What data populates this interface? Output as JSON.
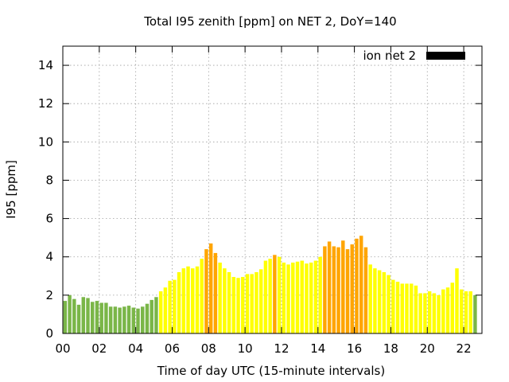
{
  "chart_data": {
    "type": "bar",
    "title": "Total I95 zenith [ppm] on NET 2, DoY=140",
    "xlabel": "Time of day UTC (15-minute intervals)",
    "ylabel": "I95 [ppm]",
    "ylim": [
      0,
      15
    ],
    "xlim": [
      0,
      23
    ],
    "grid": true,
    "legend_position": "top-right",
    "x_ticks": [
      "00",
      "02",
      "04",
      "06",
      "08",
      "10",
      "12",
      "14",
      "16",
      "18",
      "20",
      "22"
    ],
    "y_ticks": [
      "0",
      "2",
      "4",
      "6",
      "8",
      "10",
      "12",
      "14"
    ],
    "colors": {
      "green": "#7ab648",
      "yellow": "#ffff00",
      "orange": "#ffa500",
      "legend": "#000000"
    },
    "series": [
      {
        "name": "ion net 2",
        "color": "#000000",
        "interval_hours": 0.25,
        "values": [
          1.7,
          2.0,
          1.8,
          1.5,
          1.9,
          1.85,
          1.65,
          1.7,
          1.6,
          1.6,
          1.4,
          1.4,
          1.35,
          1.4,
          1.45,
          1.35,
          1.3,
          1.4,
          1.55,
          1.75,
          1.9,
          2.2,
          2.4,
          2.75,
          2.8,
          3.2,
          3.4,
          3.5,
          3.4,
          3.5,
          3.9,
          4.4,
          4.7,
          4.2,
          3.7,
          3.4,
          3.2,
          2.95,
          2.9,
          2.95,
          3.1,
          3.1,
          3.2,
          3.35,
          3.8,
          3.9,
          4.1,
          4.0,
          3.7,
          3.6,
          3.7,
          3.75,
          3.8,
          3.65,
          3.7,
          3.8,
          4.0,
          4.55,
          4.8,
          4.55,
          4.5,
          4.85,
          4.4,
          4.65,
          4.95,
          5.1,
          4.5,
          3.6,
          3.4,
          3.3,
          3.2,
          3.05,
          2.8,
          2.7,
          2.6,
          2.6,
          2.6,
          2.5,
          2.1,
          2.1,
          2.2,
          2.1,
          2.0,
          2.3,
          2.4,
          2.65,
          3.4,
          2.3,
          2.2,
          2.2,
          2.0
        ],
        "bar_colors": [
          "green",
          "green",
          "green",
          "green",
          "green",
          "green",
          "green",
          "green",
          "green",
          "green",
          "green",
          "green",
          "green",
          "green",
          "green",
          "green",
          "green",
          "green",
          "green",
          "green",
          "green",
          "yellow",
          "yellow",
          "yellow",
          "yellow",
          "yellow",
          "yellow",
          "yellow",
          "yellow",
          "yellow",
          "yellow",
          "orange",
          "orange",
          "orange",
          "yellow",
          "yellow",
          "yellow",
          "yellow",
          "yellow",
          "yellow",
          "yellow",
          "yellow",
          "yellow",
          "yellow",
          "yellow",
          "yellow",
          "orange",
          "yellow",
          "yellow",
          "yellow",
          "yellow",
          "yellow",
          "yellow",
          "yellow",
          "yellow",
          "yellow",
          "yellow",
          "orange",
          "orange",
          "orange",
          "orange",
          "orange",
          "orange",
          "orange",
          "orange",
          "orange",
          "orange",
          "yellow",
          "yellow",
          "yellow",
          "yellow",
          "yellow",
          "yellow",
          "yellow",
          "yellow",
          "yellow",
          "yellow",
          "yellow",
          "yellow",
          "yellow",
          "yellow",
          "yellow",
          "yellow",
          "yellow",
          "yellow",
          "yellow",
          "yellow",
          "yellow",
          "yellow",
          "yellow",
          "green"
        ]
      }
    ]
  }
}
